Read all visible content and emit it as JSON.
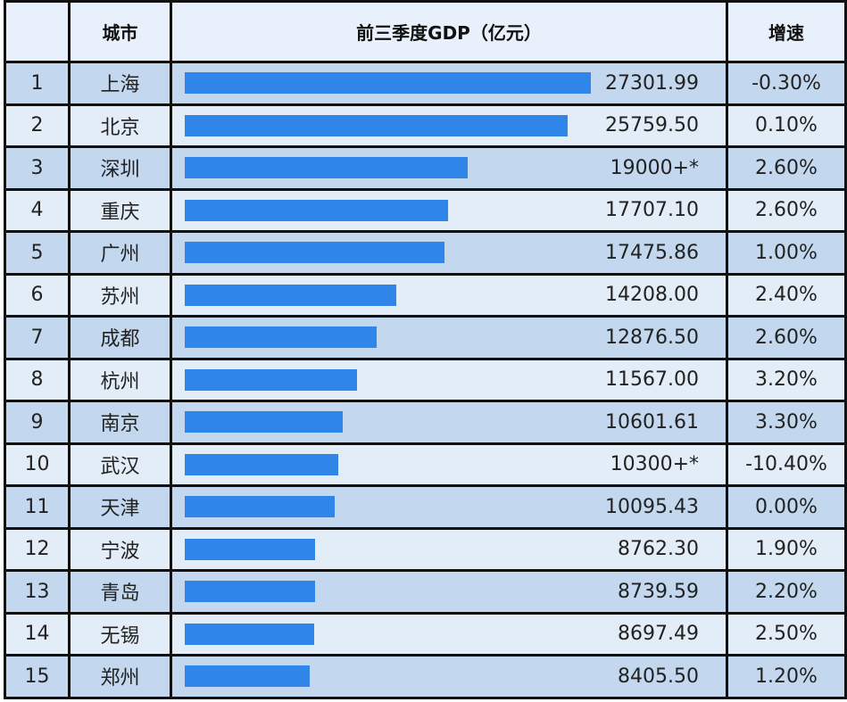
{
  "table": {
    "headers": {
      "rank": "",
      "city": "城市",
      "gdp": "前三季度GDP（亿元）",
      "growth": "增速"
    }
  },
  "chart_data": {
    "type": "bar",
    "title": "",
    "columns": [
      "",
      "城市",
      "前三季度GDP（亿元）",
      "增速"
    ],
    "rows": [
      {
        "rank": "1",
        "city": "上海",
        "gdp_label": "27301.99",
        "value": 27301.99,
        "growth": "-0.30%"
      },
      {
        "rank": "2",
        "city": "北京",
        "gdp_label": "25759.50",
        "value": 25759.5,
        "growth": "0.10%"
      },
      {
        "rank": "3",
        "city": "深圳",
        "gdp_label": "19000+*",
        "value": 19000,
        "growth": "2.60%"
      },
      {
        "rank": "4",
        "city": "重庆",
        "gdp_label": "17707.10",
        "value": 17707.1,
        "growth": "2.60%"
      },
      {
        "rank": "5",
        "city": "广州",
        "gdp_label": "17475.86",
        "value": 17475.86,
        "growth": "1.00%"
      },
      {
        "rank": "6",
        "city": "苏州",
        "gdp_label": "14208.00",
        "value": 14208.0,
        "growth": "2.40%"
      },
      {
        "rank": "7",
        "city": "成都",
        "gdp_label": "12876.50",
        "value": 12876.5,
        "growth": "2.60%"
      },
      {
        "rank": "8",
        "city": "杭州",
        "gdp_label": "11567.00",
        "value": 11567.0,
        "growth": "3.20%"
      },
      {
        "rank": "9",
        "city": "南京",
        "gdp_label": "10601.61",
        "value": 10601.61,
        "growth": "3.30%"
      },
      {
        "rank": "10",
        "city": "武汉",
        "gdp_label": "10300+*",
        "value": 10300,
        "growth": "-10.40%"
      },
      {
        "rank": "11",
        "city": "天津",
        "gdp_label": "10095.43",
        "value": 10095.43,
        "growth": "0.00%"
      },
      {
        "rank": "12",
        "city": "宁波",
        "gdp_label": "8762.30",
        "value": 8762.3,
        "growth": "1.90%"
      },
      {
        "rank": "13",
        "city": "青岛",
        "gdp_label": "8739.59",
        "value": 8739.59,
        "growth": "2.20%"
      },
      {
        "rank": "14",
        "city": "无锡",
        "gdp_label": "8697.49",
        "value": 8697.49,
        "growth": "2.50%"
      },
      {
        "rank": "15",
        "city": "郑州",
        "gdp_label": "8405.50",
        "value": 8405.5,
        "growth": "1.20%"
      }
    ],
    "bar_color": "#2f86e8",
    "row_colors": [
      "#c3d8ef",
      "#e3edf8"
    ],
    "header_color": "#e8f1fb"
  }
}
